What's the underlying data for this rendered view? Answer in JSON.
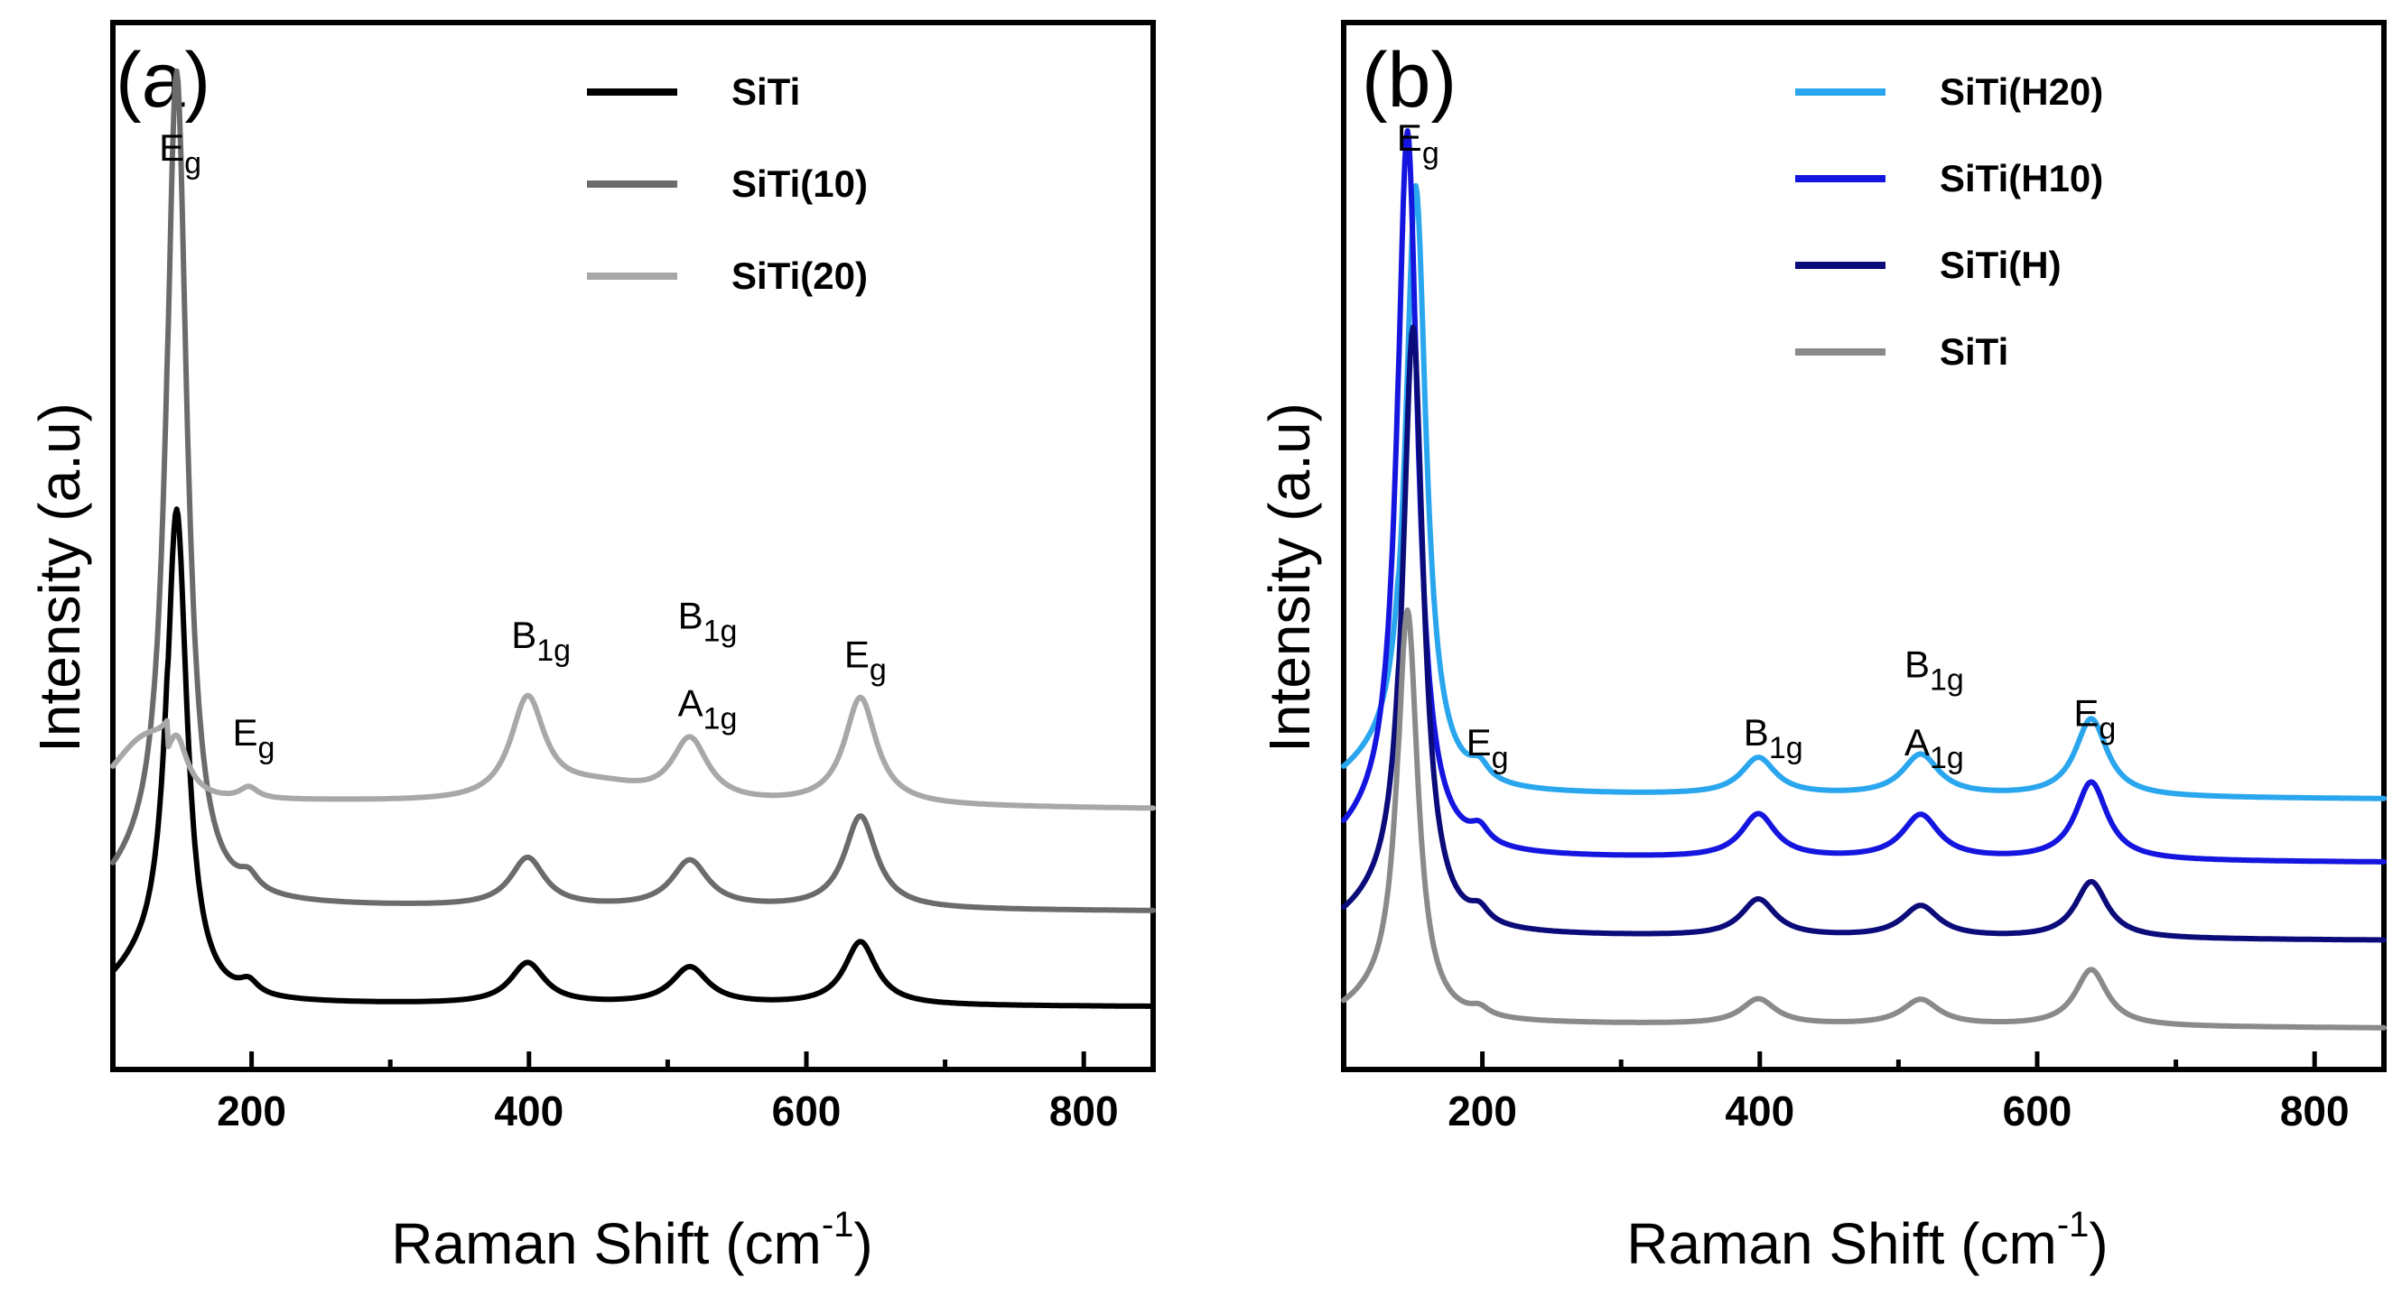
{
  "chart_data": [
    {
      "type": "line",
      "panel_label": "(a)",
      "xlabel": "Raman Shift (cm",
      "xlabel_sup": "-1",
      "xlabel_close": ")",
      "ylabel": "Intensity (a.u)",
      "xlim": [
        100,
        850
      ],
      "ylim": [
        0,
        100
      ],
      "x_ticks": [
        "200",
        "400",
        "600",
        "800"
      ],
      "x_tick_values": [
        200,
        400,
        600,
        800
      ],
      "legend": {
        "placement": "top-right"
      },
      "series": [
        {
          "name": "SiTi",
          "color": "#000000",
          "baseline": 3.5,
          "tail": 3.2,
          "eg1": 50,
          "eg2": 1.3,
          "b1": 4.2,
          "a1": 3.8,
          "eg3": 6.5,
          "pre": 2.8
        },
        {
          "name": "SiTi(10)",
          "color": "#6b6b6b",
          "baseline": 13.5,
          "tail": 13,
          "eg1": 85,
          "eg2": 1.5,
          "b1": 5,
          "a1": 4.8,
          "eg3": 9.5,
          "pre": 2.5
        },
        {
          "name": "SiTi(20)",
          "color": "#a8a8a8",
          "baseline": 24.5,
          "tail": 23.5,
          "eg1": 5,
          "eg2": 1.2,
          "b1": 10.5,
          "a1": 6.5,
          "eg3": 11,
          "pre": 6
        }
      ],
      "annotations": [
        {
          "text": "E",
          "sub": "g",
          "x": 145,
          "y": 90
        },
        {
          "text": "E",
          "sub": "g",
          "x": 198,
          "y": 30
        },
        {
          "text": "B",
          "sub": "1g",
          "x": 399,
          "y": 40
        },
        {
          "text": "B",
          "sub": "1g",
          "x": 519,
          "y": 42
        },
        {
          "text": "A",
          "sub": "1g",
          "x": 519,
          "y": 33
        },
        {
          "text": "E",
          "sub": "g",
          "x": 639,
          "y": 38
        }
      ]
    },
    {
      "type": "line",
      "panel_label": "(b)",
      "xlabel": "Raman Shift (cm",
      "xlabel_sup": "-1",
      "xlabel_close": ")",
      "ylabel": "Intensity (a.u)",
      "xlim": [
        100,
        850
      ],
      "ylim": [
        0,
        100
      ],
      "x_ticks": [
        "200",
        "400",
        "600",
        "800"
      ],
      "x_tick_values": [
        200,
        400,
        600,
        800
      ],
      "legend": {
        "placement": "top-right"
      },
      "series": [
        {
          "name": "SiTi(H20)",
          "color": "#2aa6ee",
          "baseline": 25,
          "tail": 24.5,
          "eg1": 62,
          "eg2": 1.6,
          "b1": 3.8,
          "a1": 4.2,
          "eg3": 8,
          "pre": 2
        },
        {
          "name": "SiTi(H10)",
          "color": "#1515e0",
          "baseline": 18.5,
          "tail": 18,
          "eg1": 74,
          "eg2": 1.6,
          "b1": 4.5,
          "a1": 4.5,
          "eg3": 8,
          "pre": 2
        },
        {
          "name": "SiTi(H)",
          "color": "#0b0b7a",
          "baseline": 10.5,
          "tail": 10,
          "eg1": 62,
          "eg2": 1.4,
          "b1": 3.8,
          "a1": 3.2,
          "eg3": 5.8,
          "pre": 1.8
        },
        {
          "name": "SiTi",
          "color": "#8a8a8a",
          "baseline": 1.5,
          "tail": 1,
          "eg1": 42,
          "eg2": 0.8,
          "b1": 2.6,
          "a1": 2.6,
          "eg3": 5.8,
          "pre": 1.5
        }
      ],
      "annotations": [
        {
          "text": "E",
          "sub": "g",
          "x": 150,
          "y": 91
        },
        {
          "text": "E",
          "sub": "g",
          "x": 200,
          "y": 29
        },
        {
          "text": "B",
          "sub": "1g",
          "x": 400,
          "y": 30
        },
        {
          "text": "B",
          "sub": "1g",
          "x": 516,
          "y": 37
        },
        {
          "text": "A",
          "sub": "1g",
          "x": 516,
          "y": 29
        },
        {
          "text": "E",
          "sub": "g",
          "x": 638,
          "y": 32
        }
      ]
    }
  ]
}
